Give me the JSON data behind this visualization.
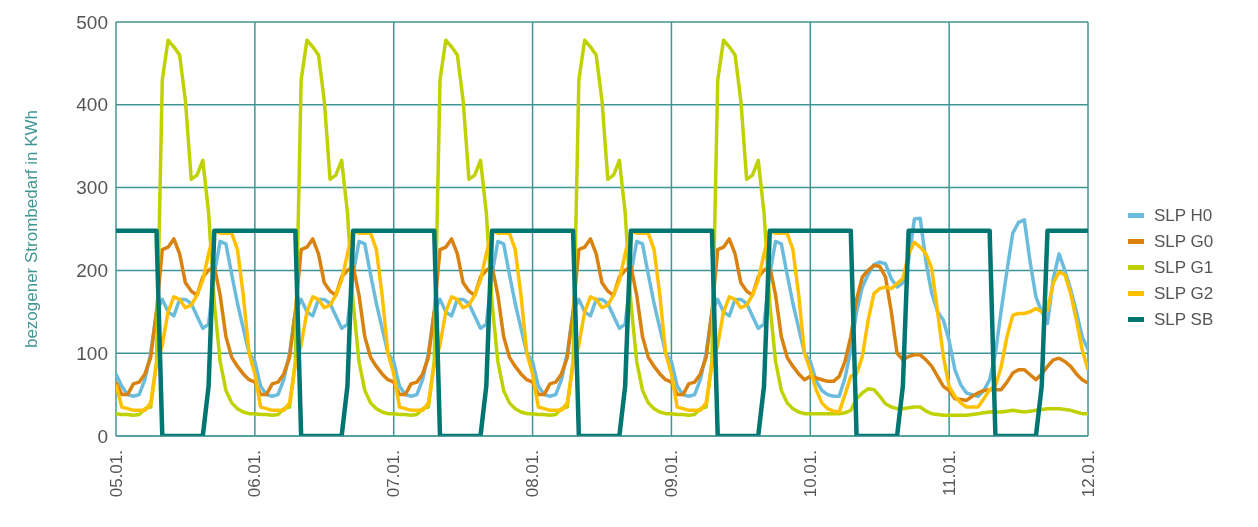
{
  "chart_data": {
    "type": "line",
    "ylabel": "bezogener Strombedarf in KWh",
    "categories": [
      "05.01.",
      null,
      null,
      null,
      null,
      null,
      null,
      null,
      null,
      null,
      null,
      null,
      null,
      null,
      null,
      null,
      null,
      null,
      null,
      null,
      null,
      null,
      null,
      null,
      "06.01.",
      null,
      null,
      null,
      null,
      null,
      null,
      null,
      null,
      null,
      null,
      null,
      null,
      null,
      null,
      null,
      null,
      null,
      null,
      null,
      null,
      null,
      null,
      null,
      "07.01.",
      null,
      null,
      null,
      null,
      null,
      null,
      null,
      null,
      null,
      null,
      null,
      null,
      null,
      null,
      null,
      null,
      null,
      null,
      null,
      null,
      null,
      null,
      null,
      "08.01.",
      null,
      null,
      null,
      null,
      null,
      null,
      null,
      null,
      null,
      null,
      null,
      null,
      null,
      null,
      null,
      null,
      null,
      null,
      null,
      null,
      null,
      null,
      null,
      "09.01.",
      null,
      null,
      null,
      null,
      null,
      null,
      null,
      null,
      null,
      null,
      null,
      null,
      null,
      null,
      null,
      null,
      null,
      null,
      null,
      null,
      null,
      null,
      null,
      "10.01.",
      null,
      null,
      null,
      null,
      null,
      null,
      null,
      null,
      null,
      null,
      null,
      null,
      null,
      null,
      null,
      null,
      null,
      null,
      null,
      null,
      null,
      null,
      null,
      "11.01.",
      null,
      null,
      null,
      null,
      null,
      null,
      null,
      null,
      null,
      null,
      null,
      null,
      null,
      null,
      null,
      null,
      null,
      null,
      null,
      null,
      null,
      null,
      null,
      "12.01."
    ],
    "series": [
      {
        "name": "SLP H0",
        "color": "#6bbcdc",
        "values": [
          75,
          60,
          50,
          48,
          50,
          68,
          100,
          150,
          165,
          150,
          145,
          165,
          165,
          160,
          145,
          130,
          135,
          196,
          235,
          232,
          195,
          160,
          130,
          100,
          90,
          60,
          50,
          48,
          50,
          68,
          100,
          150,
          165,
          150,
          145,
          165,
          165,
          160,
          145,
          130,
          135,
          196,
          235,
          232,
          195,
          160,
          130,
          100,
          90,
          60,
          50,
          48,
          50,
          68,
          100,
          150,
          165,
          150,
          145,
          165,
          165,
          160,
          145,
          130,
          135,
          196,
          235,
          232,
          195,
          160,
          130,
          100,
          90,
          60,
          50,
          48,
          50,
          68,
          100,
          150,
          165,
          150,
          145,
          165,
          165,
          160,
          145,
          130,
          135,
          196,
          235,
          232,
          195,
          160,
          130,
          100,
          90,
          60,
          50,
          48,
          50,
          68,
          100,
          150,
          165,
          150,
          145,
          165,
          165,
          160,
          145,
          130,
          135,
          196,
          235,
          232,
          195,
          160,
          130,
          100,
          90,
          67,
          55,
          50,
          48,
          48,
          70,
          104,
          150,
          180,
          195,
          207,
          210,
          208,
          190,
          180,
          185,
          213,
          262,
          263,
          210,
          172,
          150,
          140,
          115,
          80,
          62,
          52,
          50,
          48,
          55,
          68,
          100,
          152,
          200,
          245,
          258,
          261,
          210,
          168,
          150,
          136,
          190,
          220,
          200,
          177,
          150,
          120,
          104
        ]
      },
      {
        "name": "SLP G0",
        "color": "#d9820f",
        "values": [
          65,
          50,
          50,
          63,
          65,
          75,
          95,
          150,
          225,
          228,
          238,
          220,
          185,
          175,
          170,
          192,
          200,
          205,
          170,
          120,
          95,
          84,
          75,
          68,
          65,
          50,
          50,
          63,
          65,
          75,
          95,
          150,
          225,
          228,
          238,
          220,
          185,
          175,
          170,
          192,
          200,
          205,
          170,
          120,
          95,
          84,
          75,
          68,
          65,
          50,
          50,
          63,
          65,
          75,
          95,
          150,
          225,
          228,
          238,
          220,
          185,
          175,
          170,
          192,
          200,
          205,
          170,
          120,
          95,
          84,
          75,
          68,
          65,
          50,
          50,
          63,
          65,
          75,
          95,
          150,
          225,
          228,
          238,
          220,
          185,
          175,
          170,
          192,
          200,
          205,
          170,
          120,
          95,
          84,
          75,
          68,
          65,
          50,
          50,
          63,
          65,
          75,
          95,
          150,
          225,
          228,
          238,
          220,
          185,
          175,
          170,
          192,
          200,
          205,
          170,
          120,
          95,
          84,
          75,
          68,
          72,
          70,
          68,
          66,
          66,
          72,
          90,
          120,
          165,
          192,
          200,
          206,
          205,
          192,
          150,
          100,
          92,
          96,
          98,
          98,
          92,
          84,
          72,
          60,
          55,
          45,
          44,
          43,
          48,
          52,
          55,
          56,
          56,
          56,
          65,
          76,
          80,
          80,
          74,
          68,
          75,
          84,
          92,
          94,
          90,
          84,
          75,
          68,
          64
        ]
      },
      {
        "name": "SLP G1",
        "color": "#bfd200",
        "values": [
          27,
          26,
          26,
          25,
          26,
          33,
          35,
          90,
          430,
          478,
          470,
          460,
          405,
          310,
          315,
          333,
          270,
          160,
          90,
          55,
          40,
          33,
          29,
          27,
          27,
          26,
          26,
          25,
          26,
          33,
          35,
          90,
          430,
          478,
          470,
          460,
          405,
          310,
          315,
          333,
          270,
          160,
          90,
          55,
          40,
          33,
          29,
          27,
          27,
          26,
          26,
          25,
          26,
          33,
          35,
          90,
          430,
          478,
          470,
          460,
          405,
          310,
          315,
          333,
          270,
          160,
          90,
          55,
          40,
          33,
          29,
          27,
          27,
          26,
          26,
          25,
          26,
          33,
          35,
          90,
          430,
          478,
          470,
          460,
          405,
          310,
          315,
          333,
          270,
          160,
          90,
          55,
          40,
          33,
          29,
          27,
          27,
          26,
          26,
          25,
          26,
          33,
          35,
          90,
          430,
          478,
          470,
          460,
          405,
          310,
          315,
          333,
          270,
          160,
          90,
          55,
          40,
          33,
          29,
          27,
          27,
          27,
          27,
          27,
          27,
          27,
          28,
          31,
          45,
          52,
          57,
          56,
          48,
          39,
          35,
          33,
          33,
          34,
          35,
          35,
          30,
          27,
          26,
          25,
          25,
          25,
          25,
          25,
          26,
          27,
          28,
          29,
          29,
          29,
          30,
          31,
          30,
          29,
          30,
          31,
          32,
          33,
          33,
          33,
          32,
          31,
          29,
          27,
          27
        ]
      },
      {
        "name": "SLP G2",
        "color": "#ffc000",
        "values": [
          62,
          35,
          33,
          31,
          31,
          31,
          40,
          86,
          110,
          150,
          168,
          165,
          155,
          158,
          170,
          188,
          220,
          248,
          245,
          245,
          245,
          225,
          170,
          100,
          75,
          35,
          33,
          31,
          31,
          31,
          40,
          86,
          110,
          150,
          168,
          165,
          155,
          158,
          170,
          188,
          220,
          248,
          245,
          245,
          245,
          225,
          170,
          100,
          75,
          35,
          33,
          31,
          31,
          31,
          40,
          86,
          110,
          150,
          168,
          165,
          155,
          158,
          170,
          188,
          220,
          248,
          245,
          245,
          245,
          225,
          170,
          100,
          75,
          35,
          33,
          31,
          31,
          31,
          40,
          86,
          110,
          150,
          168,
          165,
          155,
          158,
          170,
          188,
          220,
          248,
          245,
          245,
          245,
          225,
          170,
          100,
          75,
          35,
          33,
          31,
          31,
          31,
          40,
          86,
          110,
          150,
          168,
          165,
          155,
          158,
          170,
          188,
          220,
          248,
          245,
          245,
          245,
          225,
          170,
          100,
          80,
          56,
          40,
          33,
          30,
          29,
          50,
          72,
          75,
          96,
          140,
          172,
          178,
          180,
          178,
          184,
          190,
          220,
          234,
          228,
          220,
          202,
          150,
          96,
          60,
          48,
          40,
          35,
          35,
          35,
          45,
          56,
          60,
          84,
          120,
          146,
          148,
          148,
          150,
          154,
          150,
          152,
          185,
          198,
          195,
          172,
          140,
          104,
          80
        ]
      },
      {
        "name": "SLP SB",
        "color": "#007672",
        "values": [
          248,
          248,
          248,
          248,
          248,
          248,
          248,
          248,
          0,
          0,
          0,
          0,
          0,
          0,
          0,
          0,
          60,
          248,
          248,
          248,
          248,
          248,
          248,
          248,
          248,
          248,
          248,
          248,
          248,
          248,
          248,
          248,
          0,
          0,
          0,
          0,
          0,
          0,
          0,
          0,
          60,
          248,
          248,
          248,
          248,
          248,
          248,
          248,
          248,
          248,
          248,
          248,
          248,
          248,
          248,
          248,
          0,
          0,
          0,
          0,
          0,
          0,
          0,
          0,
          60,
          248,
          248,
          248,
          248,
          248,
          248,
          248,
          248,
          248,
          248,
          248,
          248,
          248,
          248,
          248,
          0,
          0,
          0,
          0,
          0,
          0,
          0,
          0,
          60,
          248,
          248,
          248,
          248,
          248,
          248,
          248,
          248,
          248,
          248,
          248,
          248,
          248,
          248,
          248,
          0,
          0,
          0,
          0,
          0,
          0,
          0,
          0,
          60,
          248,
          248,
          248,
          248,
          248,
          248,
          248,
          248,
          248,
          248,
          248,
          248,
          248,
          248,
          248,
          0,
          0,
          0,
          0,
          0,
          0,
          0,
          0,
          60,
          248,
          248,
          248,
          248,
          248,
          248,
          248,
          248,
          248,
          248,
          248,
          248,
          248,
          248,
          248,
          0,
          0,
          0,
          0,
          0,
          0,
          0,
          0,
          60,
          248,
          248,
          248,
          248,
          248,
          248,
          248,
          248
        ]
      }
    ],
    "ylim": [
      0,
      500
    ],
    "yticks": [
      0,
      100,
      200,
      300,
      400,
      500
    ],
    "grid": true,
    "legend": "right"
  }
}
